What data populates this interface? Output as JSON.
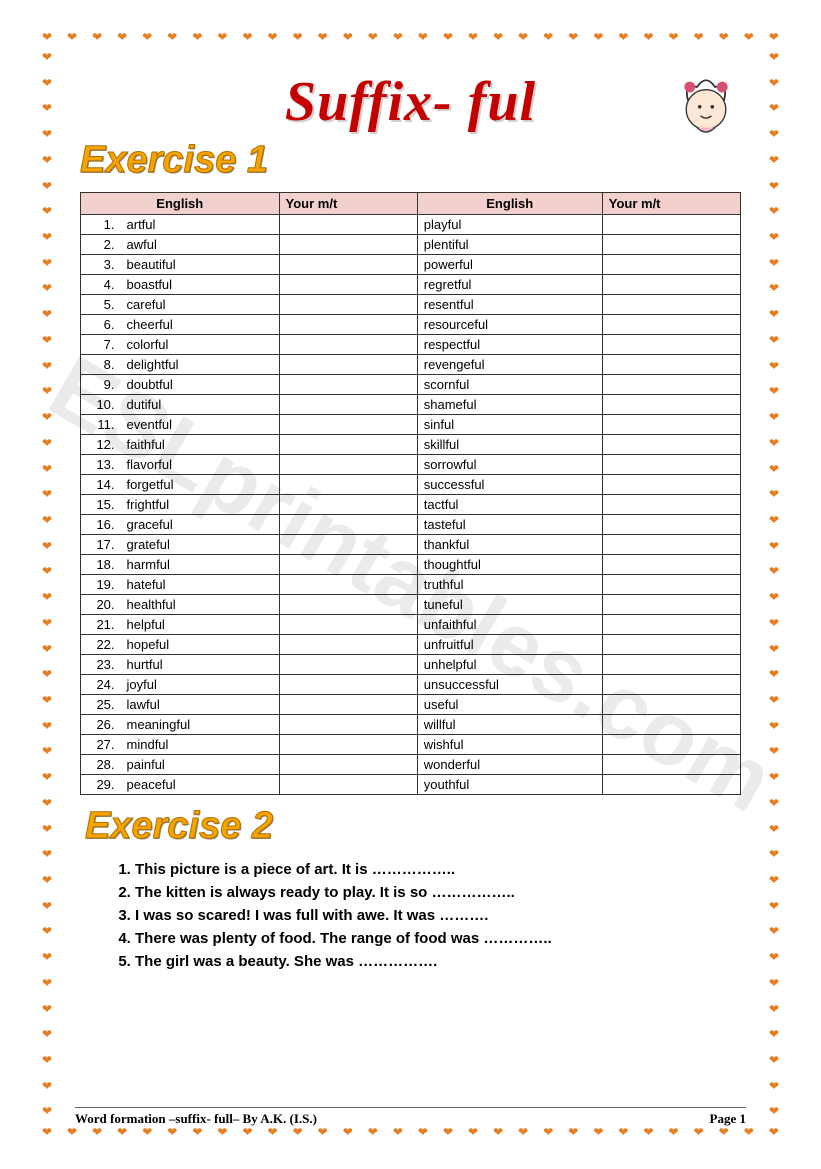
{
  "main_title": "Suffix- ful",
  "exercise1_label": "Exercise 1",
  "exercise2_label": "Exercise 2",
  "table": {
    "headers": {
      "eng": "English",
      "mt": "Your m/t"
    },
    "rows": [
      {
        "n": "1.",
        "l": "artful",
        "r": "playful"
      },
      {
        "n": "2.",
        "l": "awful",
        "r": "plentiful"
      },
      {
        "n": "3.",
        "l": "beautiful",
        "r": "powerful"
      },
      {
        "n": "4.",
        "l": "boastful",
        "r": "regretful"
      },
      {
        "n": "5.",
        "l": "careful",
        "r": "resentful"
      },
      {
        "n": "6.",
        "l": "cheerful",
        "r": "resourceful"
      },
      {
        "n": "7.",
        "l": "colorful",
        "r": "respectful"
      },
      {
        "n": "8.",
        "l": "delightful",
        "r": "revengeful"
      },
      {
        "n": "9.",
        "l": "doubtful",
        "r": "scornful"
      },
      {
        "n": "10.",
        "l": "dutiful",
        "r": "shameful"
      },
      {
        "n": "11.",
        "l": "eventful",
        "r": "sinful"
      },
      {
        "n": "12.",
        "l": "faithful",
        "r": "skillful"
      },
      {
        "n": "13.",
        "l": "flavorful",
        "r": "sorrowful"
      },
      {
        "n": "14.",
        "l": "forgetful",
        "r": "successful"
      },
      {
        "n": "15.",
        "l": "frightful",
        "r": "tactful"
      },
      {
        "n": "16.",
        "l": "graceful",
        "r": "tasteful"
      },
      {
        "n": "17.",
        "l": "grateful",
        "r": "thankful"
      },
      {
        "n": "18.",
        "l": "harmful",
        "r": "thoughtful"
      },
      {
        "n": "19.",
        "l": "hateful",
        "r": "truthful"
      },
      {
        "n": "20.",
        "l": "healthful",
        "r": "tuneful"
      },
      {
        "n": "21.",
        "l": "helpful",
        "r": "unfaithful"
      },
      {
        "n": "22.",
        "l": "hopeful",
        "r": "unfruitful"
      },
      {
        "n": "23.",
        "l": "hurtful",
        "r": "unhelpful"
      },
      {
        "n": "24.",
        "l": "joyful",
        "r": "unsuccessful"
      },
      {
        "n": "25.",
        "l": "lawful",
        "r": "useful"
      },
      {
        "n": "26.",
        "l": "meaningful",
        "r": "willful"
      },
      {
        "n": "27.",
        "l": "mindful",
        "r": "wishful"
      },
      {
        "n": "28.",
        "l": "painful",
        "r": "wonderful"
      },
      {
        "n": "29.",
        "l": "peaceful",
        "r": "youthful"
      }
    ]
  },
  "ex2": [
    "This picture is a piece of art. It is ……………..",
    "The kitten is always ready to play. It is so ……………..",
    "I was so scared! I was full with awe. It was ……….",
    "There was plenty of food. The range of food was …………..",
    "The girl was a beauty. She was ……………."
  ],
  "footer": {
    "left": "Word formation –suffix- full– By A.K. (I.S.)",
    "right": "Page 1"
  },
  "watermark": "ESLprintables.com",
  "border": {
    "h_count": 30,
    "v_count": 42,
    "glyph": "❤",
    "color": "#e67e22"
  }
}
